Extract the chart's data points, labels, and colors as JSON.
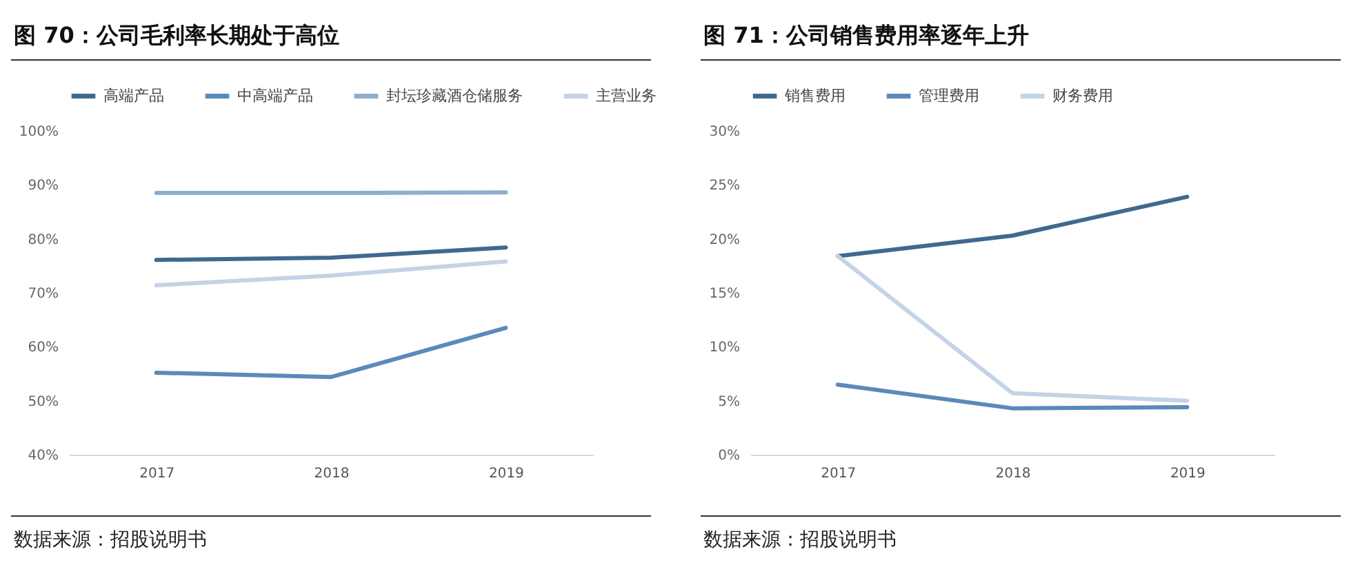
{
  "chart_data": [
    {
      "type": "line",
      "title": "图 70：公司毛利率长期处于高位",
      "categories": [
        "2017",
        "2018",
        "2019"
      ],
      "series": [
        {
          "name": "高端产品",
          "color": "#41698f",
          "values": [
            76.1,
            76.5,
            78.4
          ]
        },
        {
          "name": "中高端产品",
          "color": "#5a8ab8",
          "values": [
            55.2,
            54.4,
            63.5
          ]
        },
        {
          "name": "封坛珍藏酒仓储服务",
          "color": "#8eaed0",
          "values": [
            88.5,
            88.5,
            88.6
          ]
        },
        {
          "name": "主营业务",
          "color": "#c4d3e5",
          "values": [
            71.4,
            73.2,
            75.8
          ]
        }
      ],
      "ylim": [
        40,
        100
      ],
      "yticks": [
        {
          "value": 40,
          "label": "40%"
        },
        {
          "value": 50,
          "label": "50%"
        },
        {
          "value": 60,
          "label": "60%"
        },
        {
          "value": 70,
          "label": "70%"
        },
        {
          "value": 80,
          "label": "80%"
        },
        {
          "value": 90,
          "label": "90%"
        },
        {
          "value": 100,
          "label": "100%"
        }
      ],
      "legend": "top",
      "annotations": [
        "数据来源：招股说明书"
      ]
    },
    {
      "type": "line",
      "title": "图 71：公司销售费用率逐年上升",
      "categories": [
        "2017",
        "2018",
        "2019"
      ],
      "series": [
        {
          "name": "销售费用",
          "color": "#41698f",
          "values": [
            18.4,
            20.3,
            23.9
          ]
        },
        {
          "name": "管理费用",
          "color": "#5a8ab8",
          "values": [
            6.5,
            4.3,
            4.4
          ]
        },
        {
          "name": "财务费用",
          "color": "#c4d3e5",
          "values": [
            18.4,
            5.7,
            5.0
          ]
        }
      ],
      "ylim": [
        0,
        30
      ],
      "yticks": [
        {
          "value": 0,
          "label": "0%"
        },
        {
          "value": 5,
          "label": "5%"
        },
        {
          "value": 10,
          "label": "10%"
        },
        {
          "value": 15,
          "label": "15%"
        },
        {
          "value": 20,
          "label": "20%"
        },
        {
          "value": 25,
          "label": "25%"
        },
        {
          "value": 30,
          "label": "30%"
        }
      ],
      "legend": "top",
      "annotations": [
        "数据来源：招股说明书"
      ]
    }
  ]
}
